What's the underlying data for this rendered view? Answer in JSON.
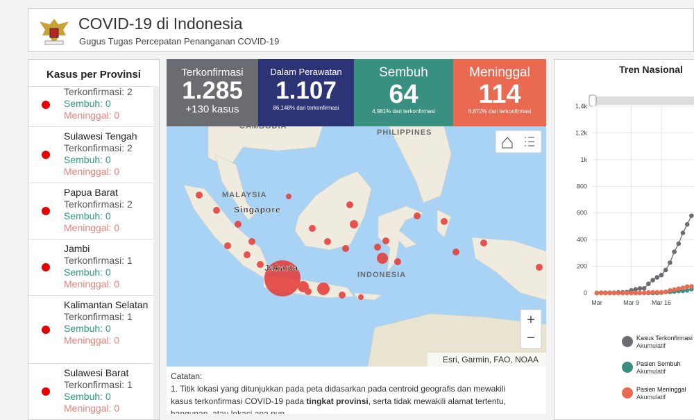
{
  "header": {
    "title": "COVID-19 di Indonesia",
    "subtitle": "Gugus Tugas Percepatan Penanganan COVID-19"
  },
  "provinces": {
    "title": "Kasus per Provinsi",
    "items": [
      {
        "name": null,
        "confirmed": "Terkonfirmasi: 2",
        "recovered": "Sembuh: 0",
        "deaths": "Meninggal: 0"
      },
      {
        "name": "Sulawesi Tengah",
        "confirmed": "Terkonfirmasi: 2",
        "recovered": "Sembuh: 0",
        "deaths": "Meninggal: 0"
      },
      {
        "name": "Papua Barat",
        "confirmed": "Terkonfirmasi: 2",
        "recovered": "Sembuh: 0",
        "deaths": "Meninggal: 0"
      },
      {
        "name": "Jambi",
        "confirmed": "Terkonfirmasi: 1",
        "recovered": "Sembuh: 0",
        "deaths": "Meninggal: 0"
      },
      {
        "name": "Kalimantan Selatan",
        "confirmed": "Terkonfirmasi: 1",
        "recovered": "Sembuh: 0",
        "deaths": "Meninggal: 0"
      },
      {
        "name": "Sulawesi Barat",
        "confirmed": "Terkonfirmasi: 1",
        "recovered": "Sembuh: 0",
        "deaths": "Meninggal: 0"
      }
    ]
  },
  "stats": [
    {
      "label": "Terkonfirmasi",
      "value": "1.285",
      "sub": "+130 kasus",
      "color": "#6b6b72"
    },
    {
      "label": "Dalam Perawatan",
      "value": "1.107",
      "sub": "86,148% dari terkonfirmasi",
      "color": "#2c3476"
    },
    {
      "label": "Sembuh",
      "value": "64",
      "sub": "4,981% dari terkonfirmasi",
      "color": "#3a9080"
    },
    {
      "label": "Meninggal",
      "value": "114",
      "sub": "8,872% dari terkonfirmasi",
      "color": "#e96a50"
    }
  ],
  "map": {
    "labels": [
      "CAMBODIA",
      "PHILIPPINES",
      "MALAYSIA",
      "Singapore",
      "Jakarta",
      "INDONESIA"
    ],
    "attribution": "Esri, Garmin, FAO, NOAA",
    "zoom_in": "+",
    "zoom_out": "−"
  },
  "notes": {
    "title": "Catatan:",
    "text_before": "1. Titik lokasi yang ditunjukkan pada peta didasarkan pada centroid geografis dan mewakili kasus terkonfirmasi COVID-19 pada ",
    "text_bold": "tingkat provinsi",
    "text_after": ", serta tidak mewakili alamat tertentu, bangunan, atau lokasi apa pun."
  },
  "chart_data": {
    "type": "line",
    "title": "Tren Nasional",
    "categories": [
      "Mar",
      null,
      null,
      null,
      null,
      null,
      null,
      null,
      "Mar 9",
      null,
      null,
      null,
      null,
      null,
      null,
      "Mar 16",
      null,
      null,
      null,
      null,
      null,
      null,
      null
    ],
    "ylim": [
      0,
      1400
    ],
    "yticks": [
      0,
      200,
      400,
      600,
      800,
      {
        "value": 1000,
        "label": "1k"
      },
      {
        "value": 1200,
        "label": "1,2k"
      },
      {
        "value": 1400,
        "label": "1,4k"
      }
    ],
    "grid": true,
    "series": [
      {
        "name": "Kasus Terkonfirmasi Akumulatif",
        "color": "#6b6b72",
        "values": [
          0,
          2,
          2,
          2,
          2,
          4,
          4,
          6,
          19,
          27,
          34,
          34,
          69,
          96,
          117,
          134,
          172,
          227,
          309,
          369,
          450,
          514,
          579
        ]
      },
      {
        "name": "Pasien Sembuh Akumulatif",
        "color": "#3a9080",
        "values": [
          0,
          0,
          0,
          0,
          0,
          0,
          0,
          0,
          0,
          0,
          0,
          0,
          0,
          0,
          0,
          2,
          8,
          8,
          11,
          15,
          17,
          20,
          29
        ]
      },
      {
        "name": "Pasien Meninggal Akumulatif",
        "color": "#e96a50",
        "values": [
          0,
          0,
          0,
          0,
          0,
          0,
          0,
          0,
          0,
          0,
          1,
          1,
          4,
          5,
          5,
          5,
          7,
          19,
          25,
          32,
          38,
          48,
          49
        ]
      }
    ]
  }
}
